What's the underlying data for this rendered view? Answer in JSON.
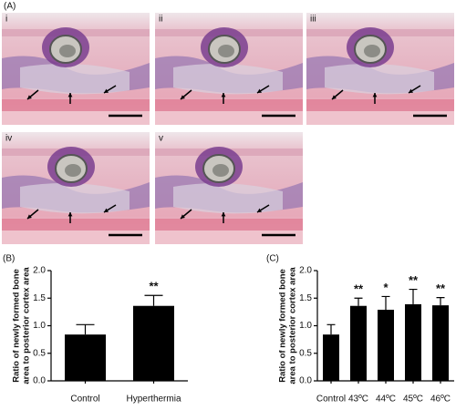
{
  "figure": {
    "label": "(A)",
    "panels": [
      "i",
      "ii",
      "iii",
      "iv",
      "v"
    ]
  },
  "chart_data": [
    {
      "type": "bar",
      "panel_label": "(B)",
      "ylabel": [
        "Ratio of newly formed bone",
        "area to posterior cortex area"
      ],
      "categories": [
        "Control",
        "Hyperthermia"
      ],
      "values": [
        0.84,
        1.36
      ],
      "errors": [
        0.18,
        0.19
      ],
      "significance": [
        null,
        "**"
      ],
      "color": "#000000",
      "ylim": [
        0,
        2.0
      ],
      "yticks": [
        {
          "value": 0,
          "label": "0.0"
        },
        {
          "value": 0.5,
          "label": "0.5"
        },
        {
          "value": 1.0,
          "label": "1.0"
        },
        {
          "value": 1.5,
          "label": "1.5"
        },
        {
          "value": 2.0,
          "label": "2.0"
        }
      ]
    },
    {
      "type": "bar",
      "panel_label": "(C)",
      "ylabel": [
        "Ratio of newly formed bone",
        "area to posterior cortex area"
      ],
      "categories": [
        "Control",
        "43ºC",
        "44ºC",
        "45ºC",
        "46ºC"
      ],
      "values": [
        0.84,
        1.36,
        1.29,
        1.39,
        1.37
      ],
      "errors": [
        0.18,
        0.14,
        0.24,
        0.27,
        0.14
      ],
      "significance": [
        null,
        "**",
        "*",
        "**",
        "**"
      ],
      "color": "#000000",
      "ylim": [
        0,
        2.0
      ],
      "yticks": [
        {
          "value": 0,
          "label": "0.0"
        },
        {
          "value": 0.5,
          "label": "0.5"
        },
        {
          "value": 1.0,
          "label": "1.0"
        },
        {
          "value": 1.5,
          "label": "1.5"
        },
        {
          "value": 2.0,
          "label": "2.0"
        }
      ]
    }
  ]
}
